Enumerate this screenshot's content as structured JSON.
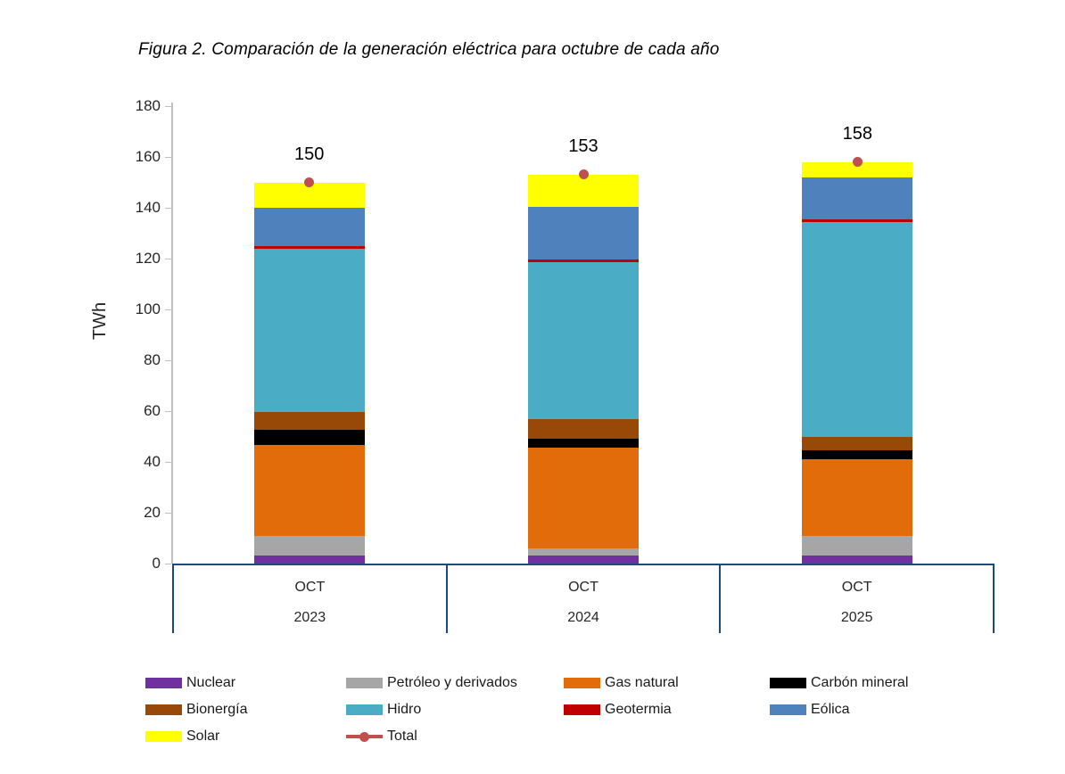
{
  "title": "Figura 2. Comparación de la generación eléctrica para octubre de cada año",
  "colors": {
    "background": "#FFFFFF",
    "frame": "#1F497D",
    "axis_line": "#BFBFBF",
    "tick_text": "#262626",
    "title_text": "#000000"
  },
  "chart_data": {
    "type": "bar",
    "stacked": true,
    "title": "Figura 2. Comparación de la generación eléctrica para octubre de cada año",
    "xlabel": "",
    "ylabel": "TWh",
    "ylim": [
      0,
      180
    ],
    "ytick_step": 20,
    "grid": false,
    "legend_position": "bottom",
    "categories": [
      {
        "month": "OCT",
        "year": "2023"
      },
      {
        "month": "OCT",
        "year": "2024"
      },
      {
        "month": "OCT",
        "year": "2025"
      }
    ],
    "series": [
      {
        "name": "Nuclear",
        "color": "#7030A0",
        "values": [
          3,
          3,
          3
        ]
      },
      {
        "name": "Petróleo y derivados",
        "color": "#A6A6A6",
        "values": [
          8,
          3,
          8
        ]
      },
      {
        "name": "Gas natural",
        "color": "#E36C0A",
        "values": [
          35.5,
          39.5,
          30
        ]
      },
      {
        "name": "Carbón mineral",
        "color": "#000000",
        "values": [
          6,
          3.5,
          3.5
        ]
      },
      {
        "name": "Bionergía",
        "color": "#984807",
        "values": [
          7,
          8,
          5.5
        ]
      },
      {
        "name": "Hidro",
        "color": "#4BACC6",
        "values": [
          64.5,
          61.5,
          84.5
        ]
      },
      {
        "name": "Geotermia",
        "color": "#C00000",
        "values": [
          1,
          1,
          1
        ]
      },
      {
        "name": "Eólica",
        "color": "#4F81BD",
        "values": [
          15,
          21,
          16.5
        ]
      },
      {
        "name": "Solar",
        "color": "#FFFF00",
        "values": [
          10,
          12.5,
          6
        ]
      }
    ],
    "totals": {
      "name": "Total",
      "color": "#C0504D",
      "values": [
        150,
        153,
        158
      ]
    }
  }
}
